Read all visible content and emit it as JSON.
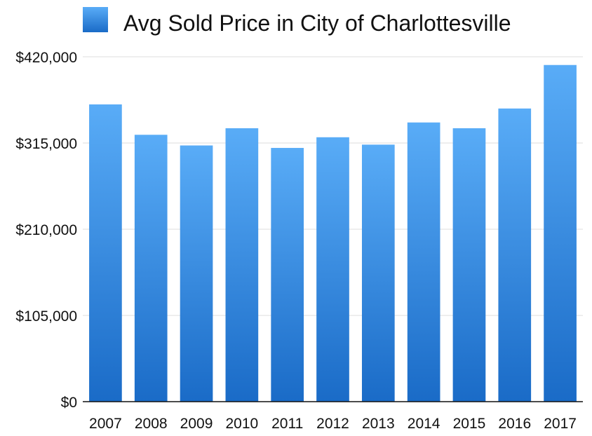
{
  "chart_data": {
    "type": "bar",
    "legend": {
      "label": "Avg Sold Price in City of Charlottesville",
      "placement": "top",
      "color": "#2f8ae8"
    },
    "categories": [
      "2007",
      "2008",
      "2009",
      "2010",
      "2011",
      "2012",
      "2013",
      "2014",
      "2015",
      "2016",
      "2017"
    ],
    "series": [
      {
        "name": "Avg Sold Price in City of Charlottesville",
        "values": [
          362000,
          325000,
          312000,
          333000,
          309000,
          322000,
          313000,
          340000,
          333000,
          357000,
          410000
        ]
      }
    ],
    "y_ticks": [
      {
        "value": 0,
        "label": "$0"
      },
      {
        "value": 105000,
        "label": "$105,000"
      },
      {
        "value": 210000,
        "label": "$210,000"
      },
      {
        "value": 315000,
        "label": "$315,000"
      },
      {
        "value": 420000,
        "label": "$420,000"
      }
    ],
    "ylim": [
      0,
      420000
    ],
    "grid": true,
    "bar_color_top": "#59acf7",
    "bar_color_bottom": "#1a6bc7"
  }
}
